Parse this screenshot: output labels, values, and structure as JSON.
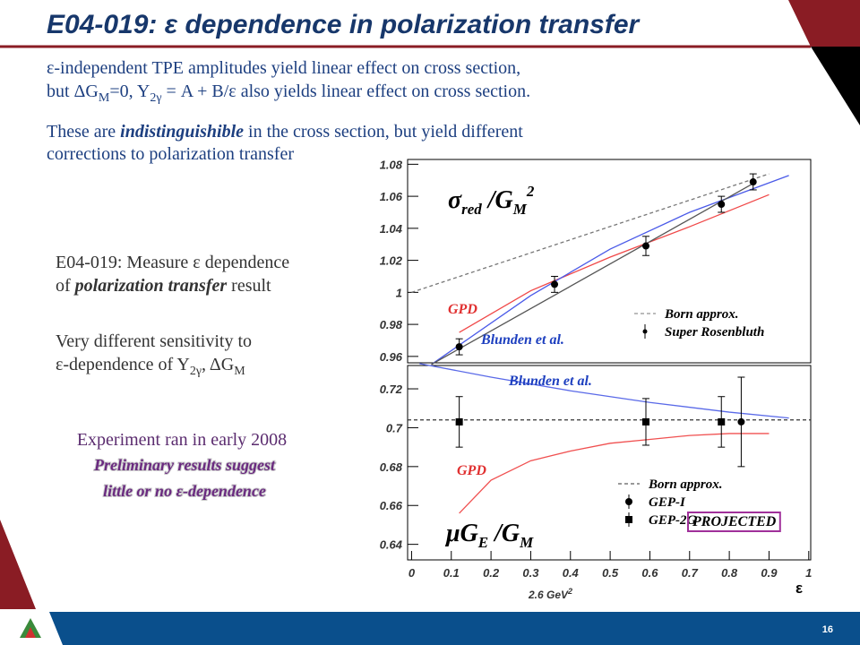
{
  "slide": {
    "title": "E04-019: ε dependence in polarization transfer",
    "para1": [
      [
        "ε-independent TPE amplitudes yield linear effect on cross section,"
      ],
      [
        "but ΔG",
        "M",
        "=0, Y",
        "2γ",
        " = A + B/ε also yields linear effect on cross section."
      ]
    ],
    "para2": [
      [
        "These are ",
        "indistinguishible",
        " in the cross section, but yield different"
      ],
      [
        "corrections to polarization transfer"
      ]
    ],
    "para3": [
      [
        "E04-019: Measure ε dependence"
      ],
      [
        "of ",
        "polarization transfer",
        " result"
      ]
    ],
    "para4": [
      [
        "Very different sensitivity to"
      ],
      [
        "ε-dependence of Y",
        "2γ",
        ", ΔG",
        "M"
      ]
    ],
    "note": "Experiment ran in early 2008",
    "result": [
      "Preliminary results suggest",
      "little or no ε-dependence"
    ],
    "page": "16"
  },
  "chart_data": [
    {
      "type": "line",
      "xlim": [
        -0.01,
        1.005
      ],
      "ylim": [
        0.956,
        1.083
      ],
      "yticks": [
        0.96,
        0.98,
        1,
        1.02,
        1.04,
        1.06,
        1.08
      ],
      "ylabel": [
        "σ",
        "red",
        " /G",
        "M",
        "2"
      ],
      "series": [
        {
          "name": "Born approx.",
          "color": "#777777",
          "dash": true,
          "x": [
            0,
            0.9
          ],
          "values": [
            1.0,
            1.074
          ]
        },
        {
          "color": "#f04848",
          "x": [
            0.12,
            0.3,
            0.5,
            0.7,
            0.9
          ],
          "values": [
            0.975,
            1.001,
            1.022,
            1.041,
            1.061
          ]
        },
        {
          "color": "#4a5ae8",
          "x": [
            0.05,
            0.3,
            0.5,
            0.7,
            0.95
          ],
          "values": [
            0.955,
            0.998,
            1.027,
            1.05,
            1.073
          ]
        },
        {
          "color": "#555555",
          "x": [
            0.05,
            0.86
          ],
          "values": [
            0.955,
            1.068
          ]
        },
        {
          "name": "Super Rosenbluth",
          "color": "#000000",
          "marker": "circle",
          "x": [
            0.12,
            0.36,
            0.59,
            0.78,
            0.86
          ],
          "values": [
            0.966,
            1.005,
            1.029,
            1.055,
            1.069
          ],
          "errors": [
            0.005,
            0.005,
            0.006,
            0.005,
            0.005
          ]
        }
      ],
      "annotations": [
        "GPD",
        "Blunden et al."
      ]
    },
    {
      "type": "line",
      "xlim": [
        -0.01,
        1.005
      ],
      "ylim": [
        0.632,
        0.732
      ],
      "yticks": [
        0.64,
        0.66,
        0.68,
        0.7,
        0.72
      ],
      "xticks": [
        0,
        0.1,
        0.2,
        0.3,
        0.4,
        0.5,
        0.6,
        0.7,
        0.8,
        0.9,
        1
      ],
      "ylabel": [
        "μG",
        "E",
        " /G",
        "M"
      ],
      "xlabel": "ε",
      "xnote": [
        "2.6 GeV",
        "2"
      ],
      "series": [
        {
          "name": "Born approx.",
          "color": "#333333",
          "dash": true,
          "x": [
            -0.01,
            1.005
          ],
          "values": [
            0.704,
            0.704
          ]
        },
        {
          "color": "#5a6ae8",
          "x": [
            0.02,
            0.2,
            0.4,
            0.6,
            0.8,
            0.95
          ],
          "values": [
            0.733,
            0.726,
            0.719,
            0.713,
            0.708,
            0.705
          ]
        },
        {
          "color": "#f05050",
          "x": [
            0.12,
            0.2,
            0.3,
            0.4,
            0.5,
            0.6,
            0.7,
            0.8,
            0.9
          ],
          "values": [
            0.656,
            0.673,
            0.683,
            0.688,
            0.692,
            0.694,
            0.696,
            0.697,
            0.697
          ]
        },
        {
          "name": "GEP-I",
          "color": "#000000",
          "marker": "circle",
          "x": [
            0.83
          ],
          "values": [
            0.703
          ],
          "errors": [
            0.023
          ]
        },
        {
          "name": "GEP-2G",
          "color": "#000000",
          "marker": "square",
          "x": [
            0.12,
            0.59,
            0.78
          ],
          "values": [
            0.703,
            0.703,
            0.703
          ],
          "errors": [
            0.013,
            0.012,
            0.013
          ]
        }
      ],
      "annotations": [
        "Blunden et al.",
        "GPD",
        "PROJECTED"
      ]
    }
  ]
}
